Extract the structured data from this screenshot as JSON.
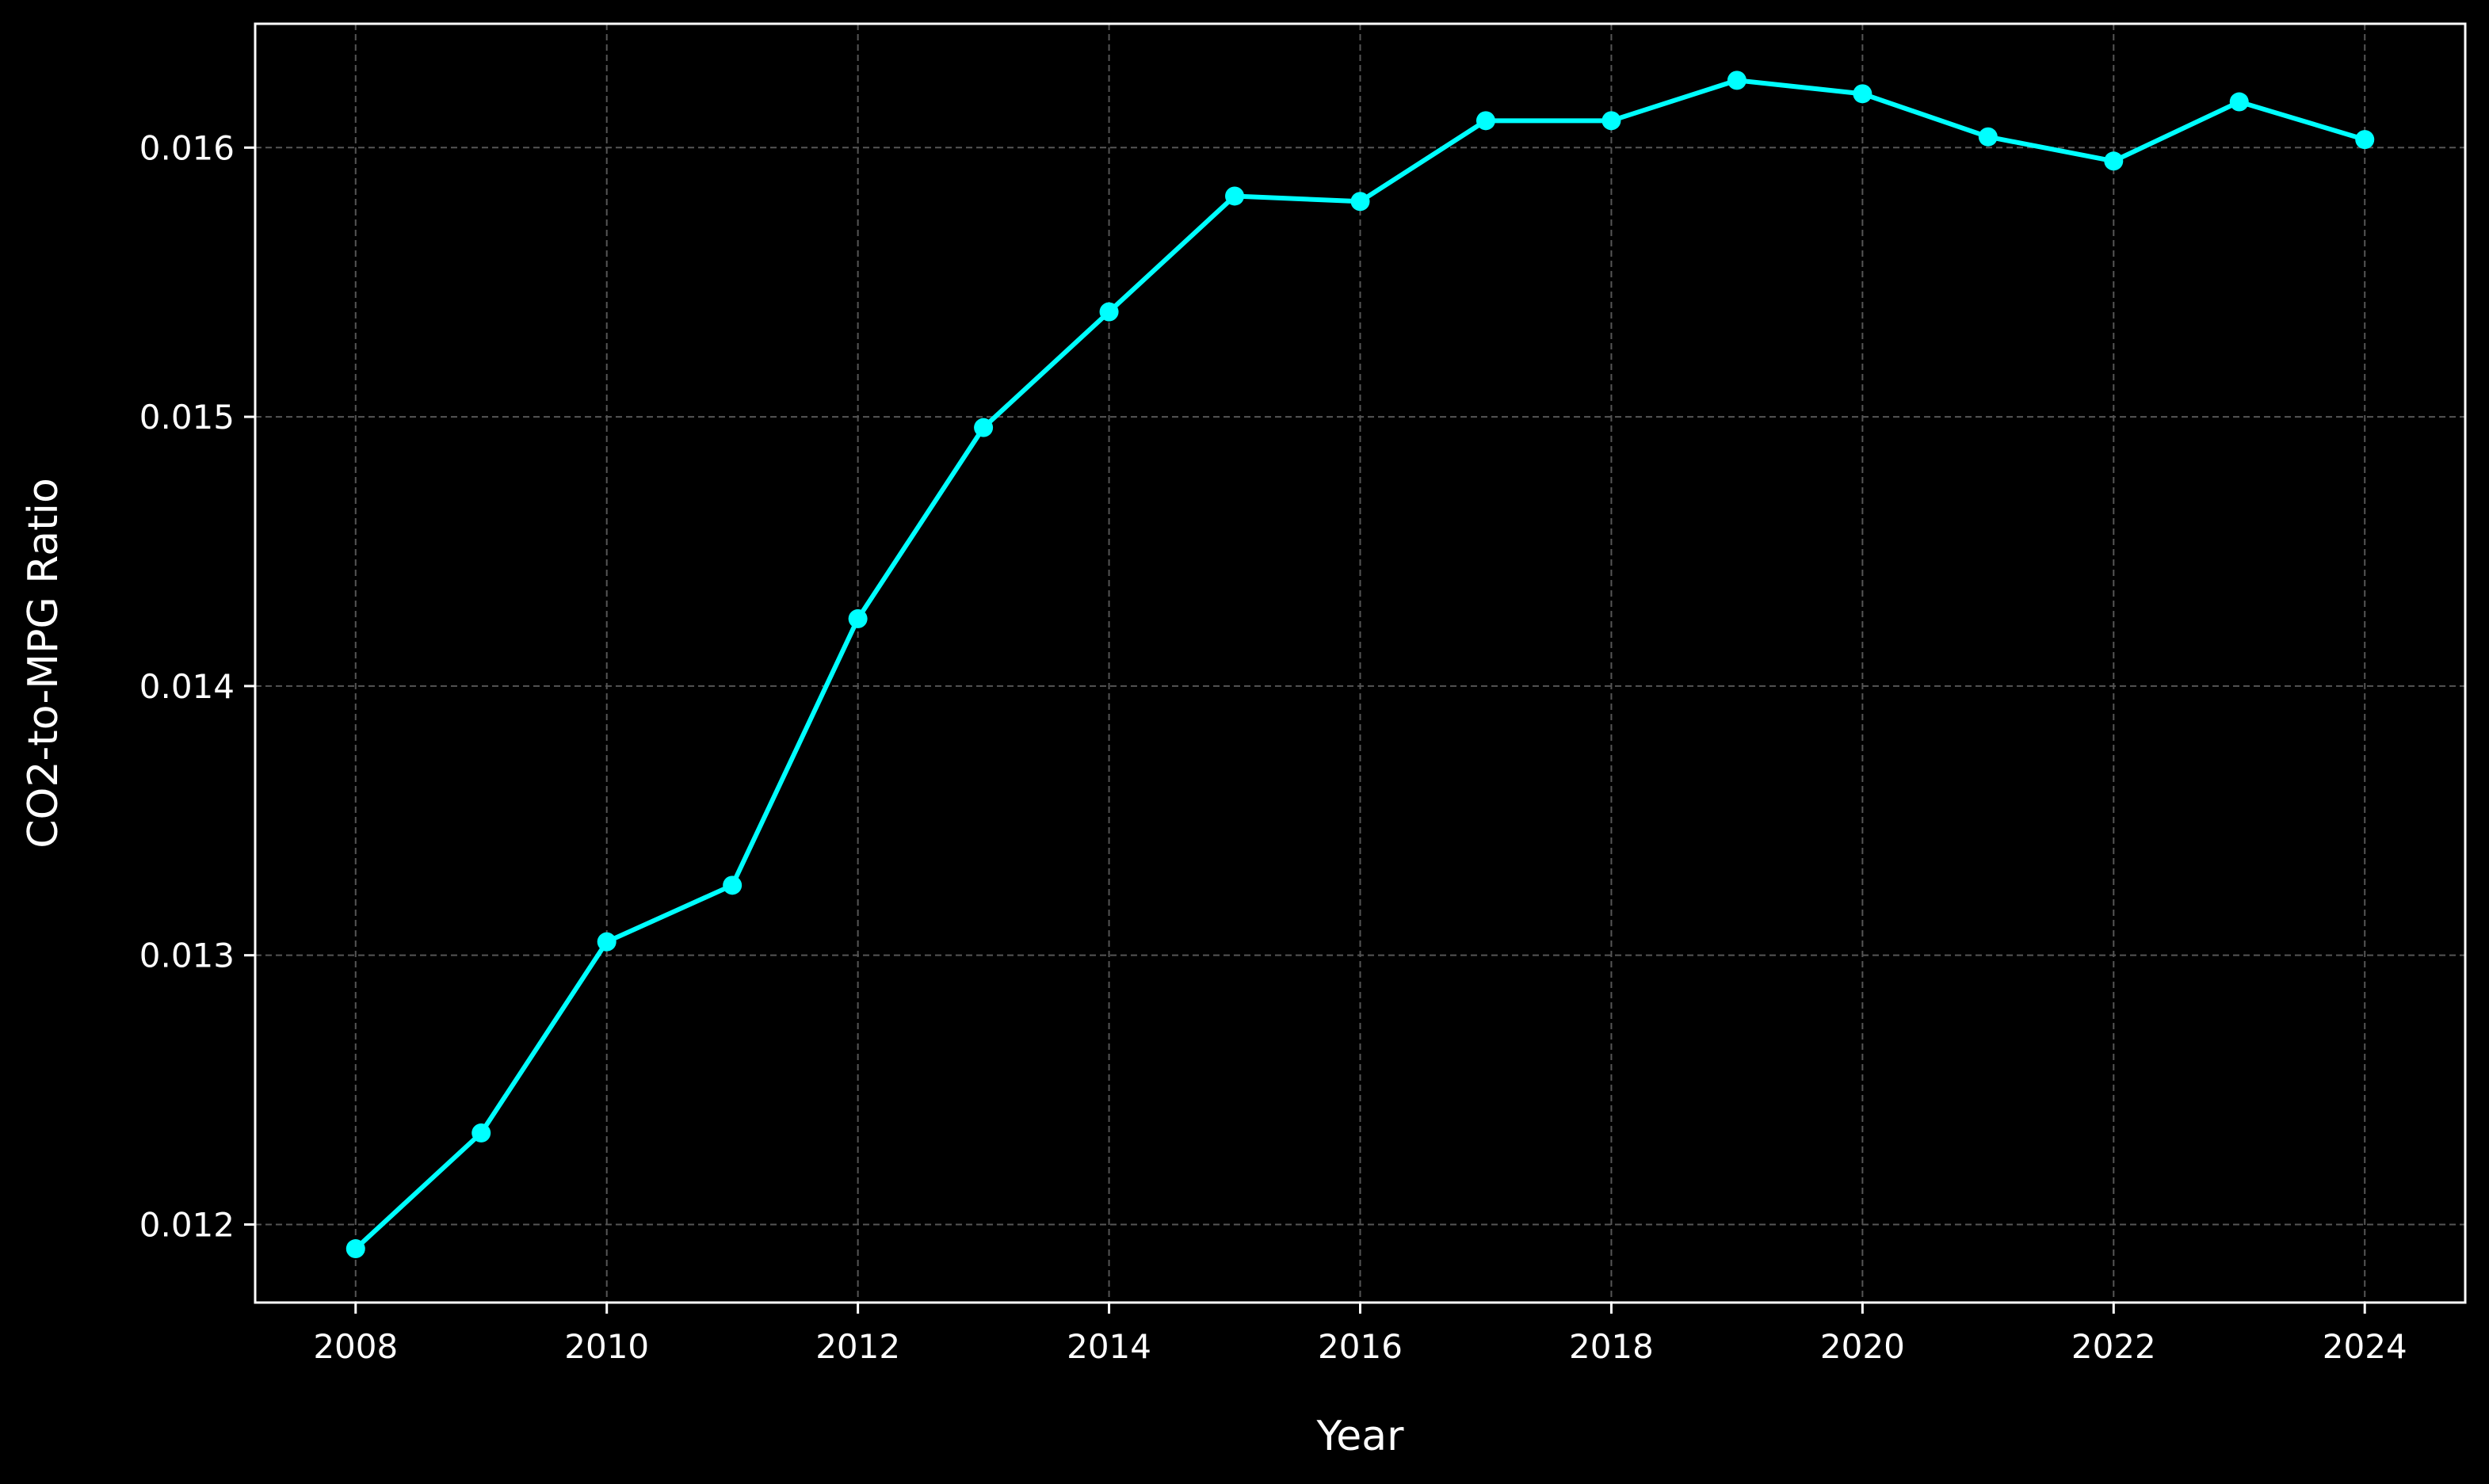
{
  "chart_data": {
    "type": "line",
    "title": "",
    "xlabel": "Year",
    "ylabel": "CO2-to-MPG Ratio",
    "x": [
      2008,
      2009,
      2010,
      2011,
      2012,
      2013,
      2014,
      2015,
      2016,
      2017,
      2018,
      2019,
      2020,
      2021,
      2022,
      2023,
      2024
    ],
    "series": [
      {
        "values": [
          0.01191,
          0.01234,
          0.01305,
          0.01326,
          0.01425,
          0.01496,
          0.01539,
          0.01582,
          0.0158,
          0.0161,
          0.0161,
          0.01625,
          0.0162,
          0.01604,
          0.01595,
          0.01617,
          0.01603
        ],
        "color": "#00ffff",
        "marker": "circle"
      }
    ],
    "xlim": [
      2007.2,
      2024.8
    ],
    "ylim": [
      0.01171,
      0.01646
    ],
    "xticks": [
      2008,
      2010,
      2012,
      2014,
      2016,
      2018,
      2020,
      2022,
      2024
    ],
    "yticks": [
      0.012,
      0.013,
      0.014,
      0.015,
      0.016
    ],
    "ytick_labels": [
      "0.012",
      "0.013",
      "0.014",
      "0.015",
      "0.016"
    ],
    "grid": true,
    "legend": "none"
  },
  "colors": {
    "background": "#000000",
    "axes": "#ffffff",
    "grid": "#555555",
    "line": "#00ffff"
  }
}
